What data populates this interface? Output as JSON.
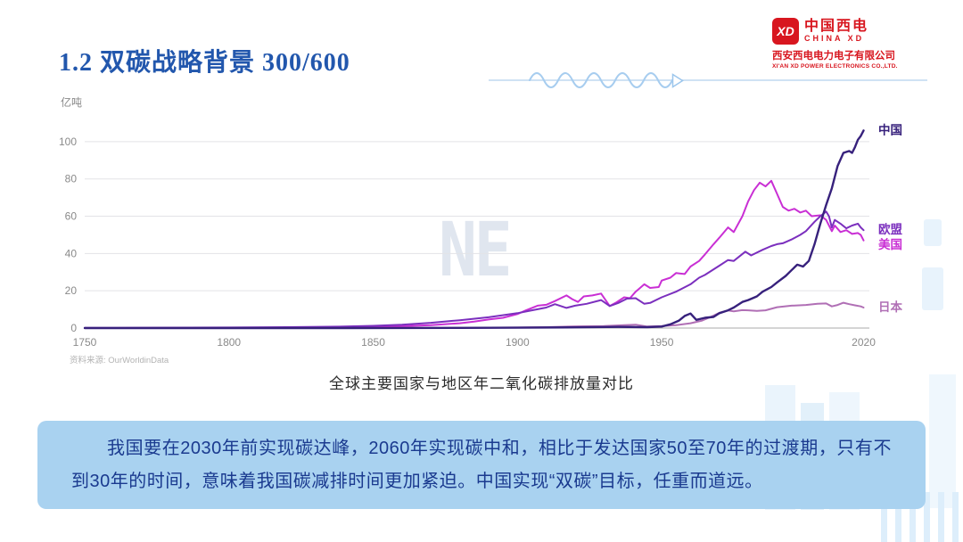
{
  "slide": {
    "title": "1.2 双碳战略背景 300/600",
    "caption": "全球主要国家与地区年二氧化碳排放量对比",
    "source_note": "资料来源: OurWorldinData",
    "summary_text": "我国要在2030年前实现碳达峰，2060年实现碳中和，相比于发达国家50至70年的过渡期，只有不到30年的时间，意味着我国碳减排时间更加紧迫。中国实现“双碳”目标，任重而道远。",
    "watermark": "NE"
  },
  "logo": {
    "mark": "XD",
    "company_cn": "中国西电",
    "company_en": "CHINA XD",
    "subsidiary_cn": "西安西电电力电子有限公司",
    "subsidiary_en": "XI'AN XD POWER ELECTRONICS CO.,LTD.",
    "brand_color": "#d8161f"
  },
  "colors": {
    "title_blue": "#2257ad",
    "box_bg": "#a9d2f0",
    "box_text": "#1a3a8f",
    "accent_line": "#cfe2f4"
  },
  "chart_data": {
    "type": "line",
    "title": "全球主要国家与地区年二氧化碳排放量对比",
    "xlabel": "",
    "ylabel": "亿吨",
    "x_ticks": [
      1750,
      1800,
      1850,
      1900,
      1950,
      2020
    ],
    "y_ticks": [
      0,
      20,
      40,
      60,
      80,
      100
    ],
    "xlim": [
      1750,
      2022
    ],
    "ylim": [
      0,
      110
    ],
    "grid": true,
    "legend_position": "right-edge",
    "source": "OurWorldinData",
    "series": [
      {
        "name": "中国",
        "color": "#37217c",
        "points": [
          [
            1750,
            0
          ],
          [
            1840,
            0
          ],
          [
            1880,
            0.1
          ],
          [
            1900,
            0.2
          ],
          [
            1920,
            0.4
          ],
          [
            1935,
            0.6
          ],
          [
            1945,
            0.5
          ],
          [
            1950,
            0.8
          ],
          [
            1953,
            2
          ],
          [
            1956,
            4
          ],
          [
            1958,
            6.5
          ],
          [
            1960,
            7.8
          ],
          [
            1962,
            4.4
          ],
          [
            1965,
            5.5
          ],
          [
            1968,
            6
          ],
          [
            1970,
            8
          ],
          [
            1973,
            9.5
          ],
          [
            1975,
            11
          ],
          [
            1978,
            14
          ],
          [
            1980,
            15
          ],
          [
            1983,
            17
          ],
          [
            1985,
            19.5
          ],
          [
            1988,
            22
          ],
          [
            1990,
            24.5
          ],
          [
            1993,
            28
          ],
          [
            1995,
            31
          ],
          [
            1997,
            34
          ],
          [
            1999,
            33
          ],
          [
            2001,
            36
          ],
          [
            2003,
            45
          ],
          [
            2005,
            56
          ],
          [
            2007,
            66
          ],
          [
            2009,
            75
          ],
          [
            2011,
            87
          ],
          [
            2013,
            94
          ],
          [
            2015,
            95
          ],
          [
            2016,
            94
          ],
          [
            2017,
            97
          ],
          [
            2018,
            101
          ],
          [
            2019,
            103
          ],
          [
            2020,
            106
          ]
        ]
      },
      {
        "name": "欧盟",
        "color": "#7b2fbe",
        "points": [
          [
            1750,
            0.1
          ],
          [
            1800,
            0.3
          ],
          [
            1820,
            0.5
          ],
          [
            1840,
            0.8
          ],
          [
            1850,
            1.2
          ],
          [
            1860,
            1.8
          ],
          [
            1870,
            2.8
          ],
          [
            1880,
            4.2
          ],
          [
            1890,
            5.8
          ],
          [
            1900,
            8
          ],
          [
            1905,
            9.5
          ],
          [
            1910,
            11
          ],
          [
            1913,
            12.8
          ],
          [
            1917,
            10.8
          ],
          [
            1920,
            12
          ],
          [
            1924,
            13
          ],
          [
            1929,
            15
          ],
          [
            1932,
            11.8
          ],
          [
            1935,
            13.5
          ],
          [
            1938,
            15.8
          ],
          [
            1941,
            16
          ],
          [
            1944,
            13
          ],
          [
            1946,
            13.5
          ],
          [
            1950,
            16.5
          ],
          [
            1955,
            19.5
          ],
          [
            1960,
            23.5
          ],
          [
            1963,
            27
          ],
          [
            1965,
            28.5
          ],
          [
            1970,
            33.5
          ],
          [
            1973,
            36.5
          ],
          [
            1975,
            36
          ],
          [
            1979,
            41
          ],
          [
            1981,
            39
          ],
          [
            1985,
            42
          ],
          [
            1988,
            44
          ],
          [
            1990,
            45
          ],
          [
            1992,
            45.5
          ],
          [
            1995,
            47.5
          ],
          [
            1998,
            50
          ],
          [
            2000,
            52
          ],
          [
            2003,
            57
          ],
          [
            2005,
            60
          ],
          [
            2007,
            62.5
          ],
          [
            2008,
            60
          ],
          [
            2009,
            54
          ],
          [
            2010,
            58
          ],
          [
            2012,
            56
          ],
          [
            2014,
            53.5
          ],
          [
            2016,
            55
          ],
          [
            2018,
            56
          ],
          [
            2019,
            54
          ],
          [
            2020,
            52.5
          ]
        ]
      },
      {
        "name": "美国",
        "color": "#c92fd4",
        "points": [
          [
            1750,
            0
          ],
          [
            1800,
            0.1
          ],
          [
            1830,
            0.2
          ],
          [
            1850,
            0.5
          ],
          [
            1860,
            1
          ],
          [
            1870,
            1.6
          ],
          [
            1880,
            2.6
          ],
          [
            1885,
            3.5
          ],
          [
            1890,
            4.6
          ],
          [
            1895,
            5.5
          ],
          [
            1900,
            7.5
          ],
          [
            1903,
            9.5
          ],
          [
            1907,
            12
          ],
          [
            1910,
            12.5
          ],
          [
            1913,
            14.5
          ],
          [
            1917,
            17.5
          ],
          [
            1919,
            15.5
          ],
          [
            1921,
            14
          ],
          [
            1923,
            17
          ],
          [
            1926,
            17.5
          ],
          [
            1929,
            18.5
          ],
          [
            1932,
            11.8
          ],
          [
            1934,
            13.5
          ],
          [
            1937,
            16.5
          ],
          [
            1939,
            16
          ],
          [
            1941,
            19.5
          ],
          [
            1944,
            23.5
          ],
          [
            1946,
            21.5
          ],
          [
            1949,
            22
          ],
          [
            1950,
            25.5
          ],
          [
            1953,
            27
          ],
          [
            1955,
            29.5
          ],
          [
            1958,
            29
          ],
          [
            1960,
            33
          ],
          [
            1963,
            36
          ],
          [
            1965,
            39.5
          ],
          [
            1968,
            45
          ],
          [
            1970,
            48.5
          ],
          [
            1973,
            54
          ],
          [
            1975,
            51.5
          ],
          [
            1978,
            60
          ],
          [
            1980,
            68
          ],
          [
            1982,
            74
          ],
          [
            1984,
            78
          ],
          [
            1986,
            76
          ],
          [
            1988,
            79
          ],
          [
            1990,
            72
          ],
          [
            1992,
            65
          ],
          [
            1994,
            63
          ],
          [
            1996,
            64
          ],
          [
            1998,
            62
          ],
          [
            2000,
            63
          ],
          [
            2002,
            60
          ],
          [
            2005,
            60.5
          ],
          [
            2007,
            58
          ],
          [
            2009,
            52
          ],
          [
            2010,
            55
          ],
          [
            2012,
            51.5
          ],
          [
            2014,
            52.5
          ],
          [
            2016,
            50.5
          ],
          [
            2018,
            51
          ],
          [
            2019,
            50
          ],
          [
            2020,
            47
          ]
        ]
      },
      {
        "name": "日本",
        "color": "#b06fb5",
        "points": [
          [
            1750,
            0
          ],
          [
            1880,
            0.1
          ],
          [
            1900,
            0.3
          ],
          [
            1910,
            0.5
          ],
          [
            1920,
            0.9
          ],
          [
            1930,
            1.1
          ],
          [
            1937,
            1.6
          ],
          [
            1941,
            1.8
          ],
          [
            1945,
            0.8
          ],
          [
            1950,
            1.1
          ],
          [
            1955,
            1.6
          ],
          [
            1960,
            2.6
          ],
          [
            1964,
            4
          ],
          [
            1967,
            6
          ],
          [
            1970,
            8.2
          ],
          [
            1973,
            9.4
          ],
          [
            1975,
            9
          ],
          [
            1978,
            9.6
          ],
          [
            1980,
            9.5
          ],
          [
            1983,
            9.2
          ],
          [
            1986,
            9.5
          ],
          [
            1990,
            11.2
          ],
          [
            1995,
            12
          ],
          [
            2000,
            12.4
          ],
          [
            2004,
            13
          ],
          [
            2007,
            13.2
          ],
          [
            2009,
            11.6
          ],
          [
            2011,
            12.4
          ],
          [
            2013,
            13.6
          ],
          [
            2015,
            12.8
          ],
          [
            2017,
            12.2
          ],
          [
            2019,
            11.6
          ],
          [
            2020,
            11
          ]
        ]
      }
    ]
  }
}
